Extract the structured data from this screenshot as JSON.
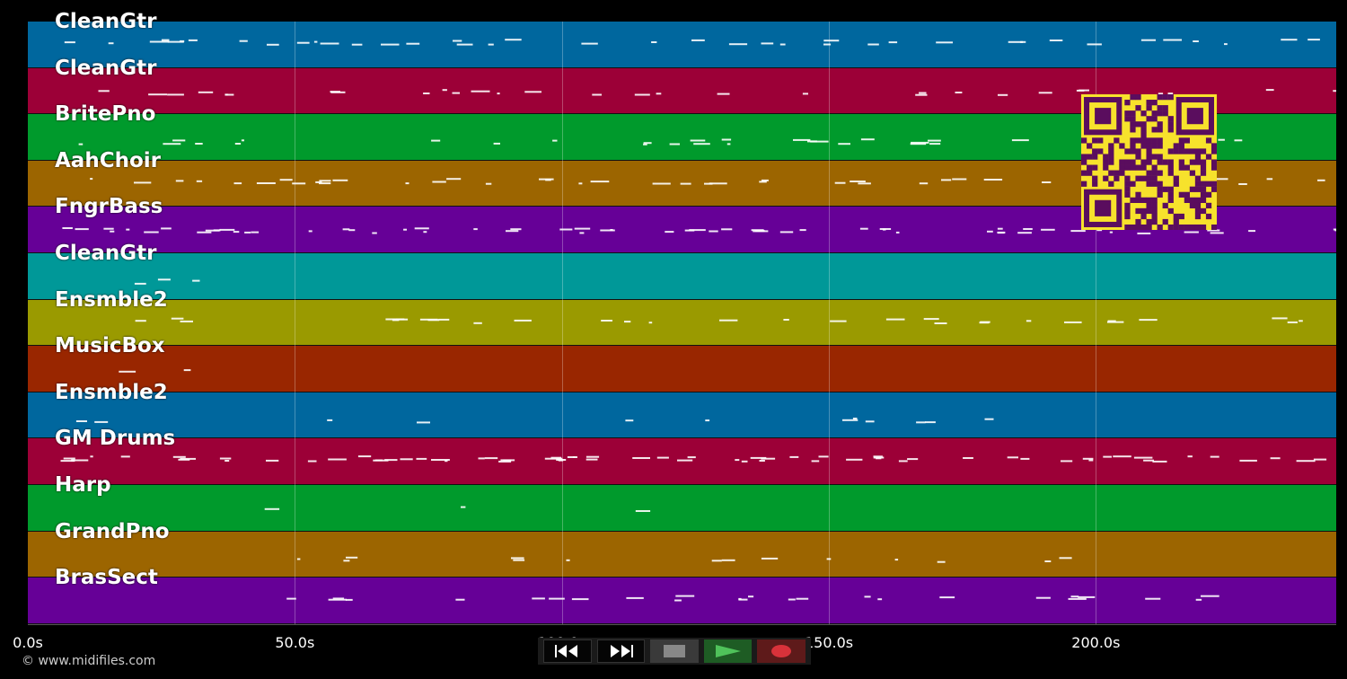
{
  "tracks": [
    {
      "name": "CleanGtr",
      "color": "#00679e"
    },
    {
      "name": "CleanGtr",
      "color": "#9c0037"
    },
    {
      "name": "BritePno",
      "color": "#009a2c"
    },
    {
      "name": "AahChoir",
      "color": "#9c6500"
    },
    {
      "name": "FngrBass",
      "color": "#660097"
    },
    {
      "name": "CleanGtr",
      "color": "#009898"
    },
    {
      "name": "Ensmble2",
      "color": "#9a9a00"
    },
    {
      "name": "MusicBox",
      "color": "#992600"
    },
    {
      "name": "Ensmble2",
      "color": "#00679e"
    },
    {
      "name": "GM Drums",
      "color": "#9c0037"
    },
    {
      "name": "Harp",
      "color": "#009a2c"
    },
    {
      "name": "GrandPno",
      "color": "#9c6500"
    },
    {
      "name": "BrasSect",
      "color": "#660097"
    }
  ],
  "timeline": {
    "max_seconds": 245,
    "ticks": [
      "0.0s",
      "50.0s",
      "100.0s",
      "150.0s",
      "200.0s"
    ],
    "tick_values": [
      0,
      50,
      100,
      150,
      200
    ]
  },
  "transport": {
    "buttons": [
      {
        "id": "rewind",
        "icon": "rewind-icon"
      },
      {
        "id": "fast-forward",
        "icon": "fast-forward-icon"
      },
      {
        "id": "stop",
        "icon": "stop-icon"
      },
      {
        "id": "play",
        "icon": "play-icon"
      },
      {
        "id": "record",
        "icon": "record-icon"
      }
    ]
  },
  "footer": {
    "copyright": "© www.midifiles.com"
  },
  "qr": {
    "icon": "qr-code-icon",
    "color": "#f7e22c",
    "dark": "#5a0d5e"
  },
  "colors": {
    "background": "#000000",
    "note": "#ffffff"
  }
}
